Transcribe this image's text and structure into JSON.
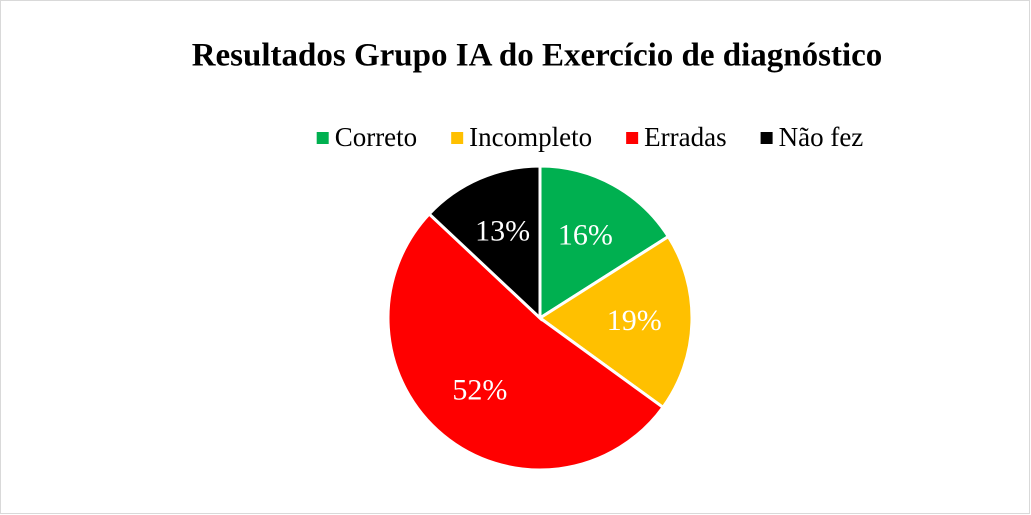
{
  "chart_data": {
    "type": "pie",
    "title": "Resultados Grupo IA do Exercício de diagnóstico",
    "categories": [
      "Correto",
      "Incompleto",
      "Erradas",
      "Não fez"
    ],
    "values": [
      16,
      19,
      52,
      13
    ],
    "value_labels": [
      "16%",
      "19%",
      "52%",
      "13%"
    ],
    "colors": [
      "#00b050",
      "#ffc000",
      "#ff0000",
      "#000000"
    ],
    "legend": "top"
  }
}
